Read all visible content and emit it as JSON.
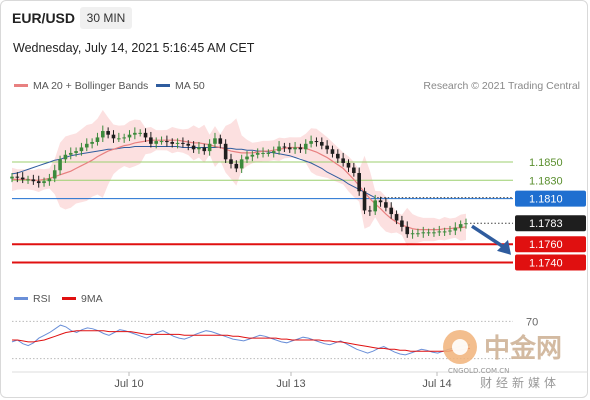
{
  "header": {
    "pair": "EUR/USD",
    "timeframe": "30 MIN",
    "datetime": "Wednesday, July 14, 2021 5:16:45 AM CET"
  },
  "legend": {
    "ma20": "MA 20 + Bollinger Bands",
    "ma50": "MA 50",
    "credit": "Research © 2021 Trading Central",
    "rsi": "RSI",
    "ma9": "9MA"
  },
  "colors": {
    "ma20": "#e88080",
    "bands": "#fbd6d6",
    "ma50": "#2f5c9e",
    "candle_up": "#3c8a3c",
    "candle_down": "#1e1e1e",
    "support": "#e01010",
    "resistance": "#9ccf6f",
    "pivot": "#1f6fd0",
    "arrow": "#2f5c9e",
    "rsi": "#6a8fd8",
    "ma9": "#e01010"
  },
  "watermark": {
    "brand": "中金网",
    "domain": "CNGOLD.COM.CN",
    "tagline": "财经新媒体"
  },
  "chart_data": {
    "type": "candlestick",
    "y_range": [
      1.7712,
      1.7918
    ],
    "x_labels": [
      "Jul 10",
      "Jul 13",
      "Jul 14"
    ],
    "levels": [
      {
        "label": "1.1850",
        "value": 1.785,
        "kind": "resistance"
      },
      {
        "label": "1.1830",
        "value": 1.783,
        "kind": "resistance"
      },
      {
        "label": "1.1810",
        "value": 1.781,
        "kind": "pivot"
      },
      {
        "label": "1.1783",
        "value": 1.7783,
        "kind": "last_price"
      },
      {
        "label": "1.1760",
        "value": 1.776,
        "kind": "support"
      },
      {
        "label": "1.1740",
        "value": 1.774,
        "kind": "support"
      }
    ],
    "forecast": {
      "from": 1.7783,
      "to": 1.7745
    },
    "closes": [
      1.7834,
      1.7833,
      1.7831,
      1.7831,
      1.7829,
      1.7827,
      1.7829,
      1.7832,
      1.7841,
      1.7853,
      1.7858,
      1.786,
      1.7862,
      1.7866,
      1.787,
      1.7872,
      1.7877,
      1.7884,
      1.788,
      1.7876,
      1.7876,
      1.7877,
      1.788,
      1.7882,
      1.7882,
      1.7877,
      1.787,
      1.7873,
      1.7873,
      1.7872,
      1.787,
      1.7871,
      1.787,
      1.7868,
      1.7864,
      1.7866,
      1.7862,
      1.787,
      1.7876,
      1.787,
      1.7853,
      1.7848,
      1.7843,
      1.7853,
      1.7856,
      1.7858,
      1.786,
      1.786,
      1.786,
      1.7862,
      1.7867,
      1.7866,
      1.7864,
      1.7866,
      1.7864,
      1.787,
      1.7873,
      1.7872,
      1.7868,
      1.7864,
      1.7859,
      1.7854,
      1.7849,
      1.7844,
      1.7838,
      1.7818,
      1.7797,
      1.7796,
      1.7808,
      1.7806,
      1.78,
      1.7793,
      1.7786,
      1.7779,
      1.7771,
      1.7772,
      1.7772,
      1.7773,
      1.7773,
      1.7773,
      1.7774,
      1.7774,
      1.7775,
      1.7778,
      1.7782,
      1.7783
    ],
    "ma20": [
      1.7831,
      1.7831,
      1.7831,
      1.7831,
      1.783,
      1.783,
      1.7831,
      1.7832,
      1.7834,
      1.7836,
      1.7838,
      1.784,
      1.7843,
      1.7846,
      1.7849,
      1.7852,
      1.7856,
      1.7859,
      1.7862,
      1.7864,
      1.7866,
      1.7868,
      1.7869,
      1.7871,
      1.7872,
      1.7873,
      1.7874,
      1.7874,
      1.7874,
      1.7874,
      1.7874,
      1.7874,
      1.7873,
      1.7872,
      1.7871,
      1.7871,
      1.787,
      1.7869,
      1.7867,
      1.7866,
      1.7864,
      1.7862,
      1.7861,
      1.786,
      1.786,
      1.786,
      1.7861,
      1.7862,
      1.7862,
      1.7863,
      1.7864,
      1.7865,
      1.7866,
      1.7866,
      1.7866,
      1.7865,
      1.7863,
      1.7861,
      1.7858,
      1.7855,
      1.7851,
      1.7847,
      1.7843,
      1.7837,
      1.7831,
      1.7824,
      1.7817,
      1.781,
      1.7804,
      1.7799,
      1.7793,
      1.7788,
      1.7784,
      1.7781,
      1.7779,
      1.7777,
      1.7776,
      1.7776,
      1.7776,
      1.7776,
      1.7776,
      1.7777,
      1.7777,
      1.7778,
      1.7778,
      1.7779
    ],
    "ma50": [
      1.7837,
      1.7838,
      1.784,
      1.7842,
      1.7844,
      1.7846,
      1.7848,
      1.785,
      1.7852,
      1.7853,
      1.7855,
      1.7857,
      1.7858,
      1.7859,
      1.786,
      1.7861,
      1.7862,
      1.7863,
      1.7864,
      1.7864,
      1.7865,
      1.7866,
      1.7866,
      1.7867,
      1.7867,
      1.7867,
      1.7867,
      1.7867,
      1.7867,
      1.7867,
      1.7867,
      1.7867,
      1.7866,
      1.7866,
      1.7866,
      1.7866,
      1.7866,
      1.7866,
      1.7866,
      1.7866,
      1.7865,
      1.7865,
      1.7864,
      1.7864,
      1.7863,
      1.7863,
      1.7862,
      1.7862,
      1.7861,
      1.786,
      1.7859,
      1.7858,
      1.7857,
      1.7855,
      1.7853,
      1.7851,
      1.7849,
      1.7846,
      1.7843,
      1.7839,
      1.7836,
      1.7833,
      1.783,
      1.7826,
      1.7823,
      1.782,
      1.7817,
      1.7814,
      1.7811
    ],
    "rsi": {
      "label_70": "70",
      "levels": [
        70,
        30
      ],
      "rsi": [
        48,
        50,
        46,
        44,
        47,
        52,
        55,
        58,
        62,
        66,
        64,
        60,
        58,
        61,
        63,
        62,
        60,
        57,
        55,
        58,
        61,
        60,
        58,
        56,
        54,
        52,
        55,
        58,
        60,
        57,
        54,
        52,
        51,
        53,
        56,
        58,
        60,
        59,
        57,
        55,
        53,
        51,
        50,
        49,
        51,
        53,
        55,
        54,
        52,
        50,
        48,
        47,
        49,
        51,
        53,
        52,
        50,
        48,
        46,
        45,
        47,
        49,
        46,
        43,
        40,
        38,
        36,
        38,
        41,
        43,
        40,
        37,
        35,
        34,
        36,
        38,
        40,
        39,
        37,
        36,
        38,
        40,
        41,
        43,
        44,
        45
      ],
      "ma9": [
        50,
        50,
        49,
        48,
        48,
        49,
        50,
        52,
        54,
        56,
        58,
        59,
        60,
        60,
        60,
        60,
        60,
        60,
        59,
        59,
        59,
        59,
        59,
        58,
        57,
        56,
        56,
        56,
        56,
        56,
        56,
        56,
        55,
        55,
        55,
        55,
        55,
        55,
        55,
        55,
        55,
        54,
        54,
        53,
        52,
        52,
        52,
        52,
        52,
        52,
        51,
        51,
        50,
        50,
        50,
        50,
        50,
        50,
        49,
        49,
        48,
        48,
        47,
        46,
        45,
        44,
        43,
        42,
        41,
        41,
        40,
        40,
        39,
        39,
        38,
        38,
        38,
        38,
        38,
        38,
        38,
        38,
        39,
        39,
        40,
        41
      ]
    }
  }
}
